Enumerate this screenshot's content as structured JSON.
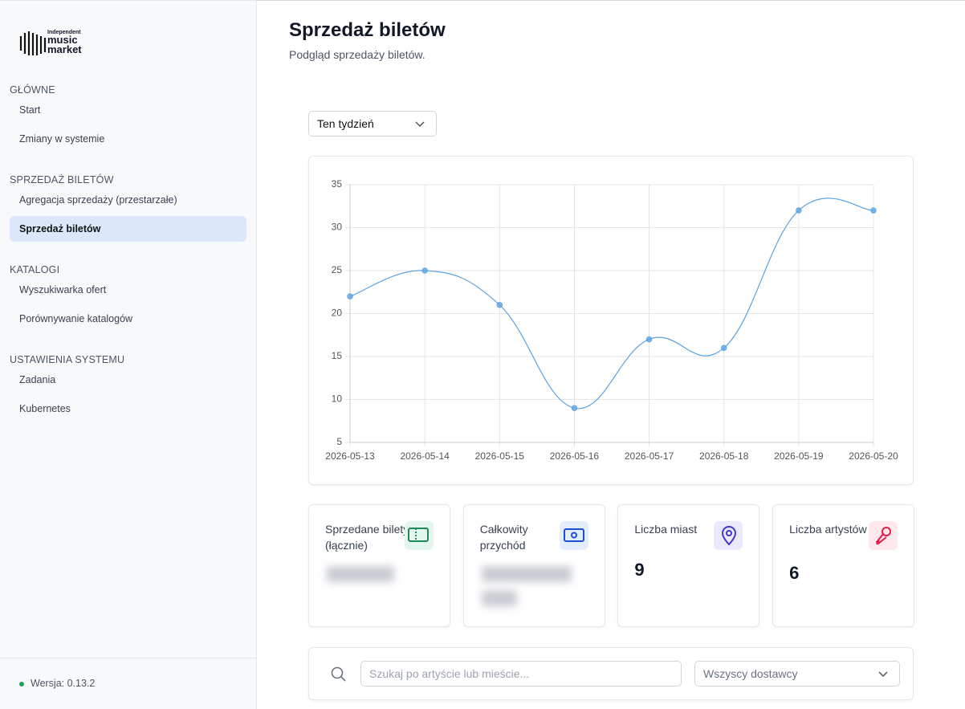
{
  "sidebar": {
    "logo": [
      "Independent",
      "music",
      "market"
    ],
    "sections": [
      {
        "title": "GŁÓWNE",
        "items": [
          {
            "label": "Start"
          },
          {
            "label": "Zmiany w systemie"
          }
        ]
      },
      {
        "title": "SPRZEDAŻ BILETÓW",
        "items": [
          {
            "label": "Agregacja sprzedaży (przestarzałe)"
          },
          {
            "label": "Sprzedaż biletów",
            "active": true
          }
        ]
      },
      {
        "title": "KATALOGI",
        "items": [
          {
            "label": "Wyszukiwarka ofert"
          },
          {
            "label": "Porównywanie katalogów"
          }
        ]
      },
      {
        "title": "USTAWIENIA SYSTEMU",
        "items": [
          {
            "label": "Zadania"
          },
          {
            "label": "Kubernetes"
          }
        ]
      }
    ],
    "version": "Wersja: 0.13.2"
  },
  "header": {
    "title": "Sprzedaż biletów",
    "subtitle": "Podgląd sprzedaży biletów."
  },
  "period_select": "Ten tydzień",
  "chart_data": {
    "type": "line",
    "x": [
      "2026-05-13",
      "2026-05-14",
      "2026-05-15",
      "2026-05-16",
      "2026-05-17",
      "2026-05-18",
      "2026-05-19",
      "2026-05-20"
    ],
    "series": [
      {
        "color": "#5aa2e0",
        "values": [
          22,
          25,
          21,
          9,
          17,
          16,
          32,
          32
        ]
      }
    ],
    "ylim": [
      5,
      35
    ],
    "yticks": [
      5,
      10,
      15,
      20,
      25,
      30,
      35
    ],
    "grid": true
  },
  "stats": [
    {
      "label": "Sprzedane bilety (łącznie)",
      "icon": "ticket"
    },
    {
      "label": "Całkowity przychód",
      "icon": "cash"
    },
    {
      "label": "Liczba miast",
      "value": 9,
      "icon": "pin"
    },
    {
      "label": "Liczba artystów",
      "value": 6,
      "icon": "mic"
    }
  ],
  "search": {
    "placeholder": "Szukaj po artyście lub mieście...",
    "provider_select": "Wszyscy dostawcy"
  }
}
